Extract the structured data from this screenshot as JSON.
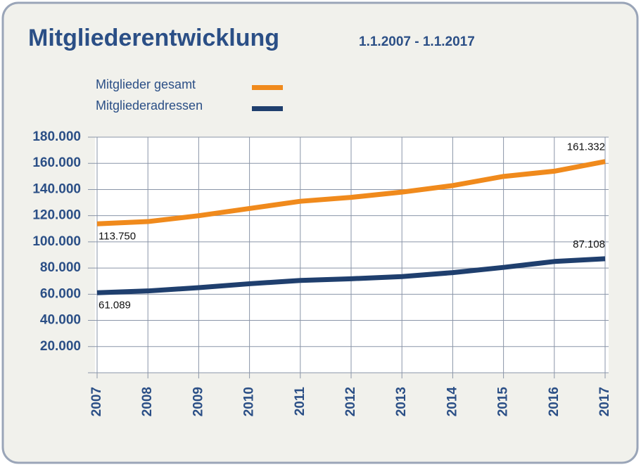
{
  "chart_data": {
    "type": "line",
    "title": "Mitgliederentwicklung",
    "subtitle": "1.1.2007 - 1.1.2017",
    "categories": [
      "2007",
      "2008",
      "2009",
      "2010",
      "2011",
      "2012",
      "2013",
      "2014",
      "2015",
      "2016",
      "2017"
    ],
    "series": [
      {
        "name": "Mitglieder gesamt",
        "color": "#f08a1c",
        "values": [
          113750,
          115500,
          120000,
          125500,
          131000,
          134000,
          138000,
          143000,
          150000,
          154000,
          161332
        ],
        "value_labels": [
          "113.750",
          null,
          null,
          null,
          null,
          null,
          null,
          null,
          null,
          null,
          "161.332"
        ]
      },
      {
        "name": "Mitgliederadressen",
        "color": "#1f3f6e",
        "values": [
          61089,
          62500,
          65000,
          68000,
          70500,
          71800,
          73500,
          76500,
          80500,
          85000,
          87108
        ],
        "value_labels": [
          "61.089",
          null,
          null,
          null,
          null,
          null,
          null,
          null,
          null,
          null,
          "87.108"
        ]
      }
    ],
    "ylim": [
      0,
      180000
    ],
    "yticks": [
      {
        "value": 20000,
        "label": "20.000"
      },
      {
        "value": 40000,
        "label": "40.000"
      },
      {
        "value": 60000,
        "label": "60.000"
      },
      {
        "value": 80000,
        "label": "80.000"
      },
      {
        "value": 100000,
        "label": "100.000"
      },
      {
        "value": 120000,
        "label": "120.000"
      },
      {
        "value": 140000,
        "label": "140.000"
      },
      {
        "value": 160000,
        "label": "160.000"
      },
      {
        "value": 180000,
        "label": "180.000"
      }
    ],
    "grid": true
  }
}
